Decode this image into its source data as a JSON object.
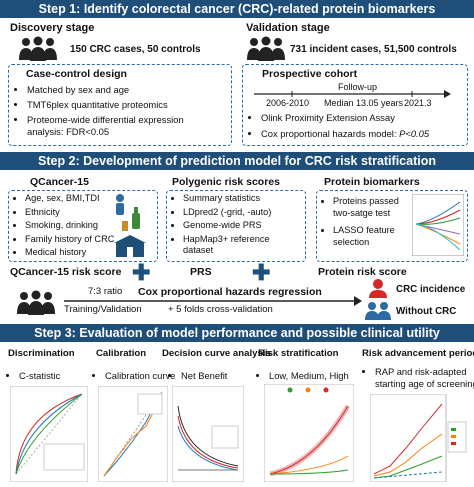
{
  "step1": {
    "title": "Step 1: Identify colorectal cancer (CRC)-related protein biomarkers",
    "discovery": {
      "heading": "Discovery stage",
      "summary": "150 CRC cases, 50 controls",
      "box_title": "Case-control design",
      "bullets": [
        "Matched by sex and age",
        "TMT6plex quantitative proteomics",
        "Proteome-wide differential expression",
        "analysis: FDR<0.05"
      ]
    },
    "validation": {
      "heading": "Validation stage",
      "summary": "731 incident cases, 51,500 controls",
      "box_title": "Prospective cohort",
      "timeline": {
        "label": "Follow-up",
        "start": "2006-2010",
        "median": "Median 13.05 years",
        "end": "2021.3"
      },
      "bullets": [
        "Olink Proximity Extension Assay",
        "Cox proportional hazards model: "
      ],
      "p_value": "P<0.05"
    }
  },
  "step2": {
    "title": "Step 2: Development of prediction model for CRC risk stratification",
    "qcancer": {
      "heading": "QCancer-15",
      "bullets": [
        "Age, sex, BMI,TDI",
        "Ethnicity",
        "Smoking, drinking",
        "Family history of CRC",
        "Medical history"
      ],
      "score": "QCancer-15 risk score"
    },
    "prs": {
      "heading": "Polygenic risk scores",
      "bullets": [
        "Summary statistics",
        "LDpred2 (-grid, -auto)",
        "Genome-wide PRS",
        "HapMap3+ reference",
        "dataset"
      ],
      "score": "PRS"
    },
    "protein": {
      "heading": "Protein biomarkers",
      "bullets": [
        "Proteins passed",
        "two-satge test",
        "LASSO feature",
        "selection"
      ],
      "score": "Protein risk score"
    },
    "ratio": "7:3 ratio",
    "cox": "Cox proportional hazards regression",
    "split": "Training/Validation",
    "cv": "+  5 folds cross-validation",
    "incidence": "CRC incidence",
    "without": "Without CRC"
  },
  "step3": {
    "title": "Step 3: Evaluation of model performance and possible clinical utility",
    "panels": [
      {
        "title": "Discrimination",
        "bullet": "C-statistic"
      },
      {
        "title": "Calibration",
        "bullet": "Calibration curve"
      },
      {
        "title": "Decision curve analysis",
        "bullet": "Net Benefit"
      },
      {
        "title": "Risk stratification",
        "bullet": "Low, Medium, High"
      },
      {
        "title": "Risk advancement period",
        "bullet": "RAP and risk-adapted",
        "bullet2": "starting age of screening"
      }
    ]
  },
  "colors": {
    "banner": "#1f4e79",
    "dash": "#2e6aa3",
    "incidence": "#d62828",
    "without": "#2e6aa3"
  }
}
